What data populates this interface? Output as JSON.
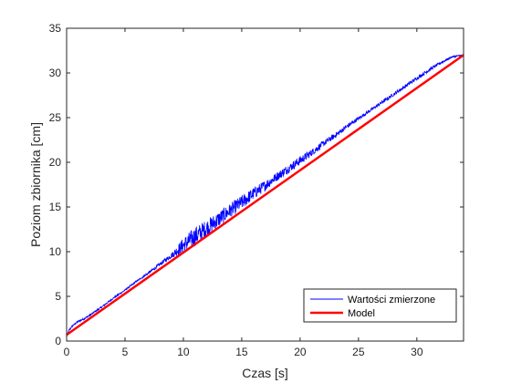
{
  "chart_data": {
    "type": "line",
    "title": "",
    "xlabel": "Czas [s]",
    "ylabel": "Poziom zbiornika [cm]",
    "xlim": [
      0,
      34
    ],
    "ylim": [
      0,
      35
    ],
    "xticks": [
      0,
      5,
      10,
      15,
      20,
      25,
      30
    ],
    "yticks": [
      0,
      5,
      10,
      15,
      20,
      25,
      30,
      35
    ],
    "grid": false,
    "legend_position": "bottom-right",
    "series": [
      {
        "name": "Wartości zmierzone",
        "color": "#0000ff",
        "style": "noisy",
        "x": [
          0,
          0.2,
          0.5,
          1,
          1.5,
          2,
          3,
          4,
          5,
          6,
          7,
          8,
          9,
          10,
          11,
          12,
          13,
          14,
          15,
          16,
          17,
          18,
          19,
          20,
          21,
          22,
          23,
          24,
          25,
          26,
          27,
          28,
          29,
          30,
          31,
          32,
          33,
          34
        ],
        "y": [
          0.5,
          1.2,
          1.7,
          2.2,
          2.5,
          2.9,
          3.8,
          4.8,
          5.7,
          6.7,
          7.6,
          8.6,
          9.6,
          10.7,
          11.7,
          12.6,
          13.6,
          14.6,
          15.5,
          16.5,
          17.4,
          18.4,
          19.3,
          20.2,
          21.1,
          22.1,
          23.0,
          24.0,
          24.9,
          25.8,
          26.7,
          27.6,
          28.5,
          29.4,
          30.3,
          31.1,
          31.8,
          32.0
        ],
        "noise": [
          0.1,
          0.1,
          0.1,
          0.1,
          0.1,
          0.1,
          0.1,
          0.1,
          0.1,
          0.1,
          0.15,
          0.2,
          0.3,
          0.9,
          1.1,
          1.0,
          0.9,
          0.8,
          0.8,
          0.7,
          0.6,
          0.5,
          0.5,
          0.5,
          0.4,
          0.35,
          0.3,
          0.25,
          0.2,
          0.2,
          0.2,
          0.2,
          0.2,
          0.2,
          0.2,
          0.15,
          0.1,
          0.1
        ]
      },
      {
        "name": "Model",
        "color": "#ff0000",
        "style": "thick",
        "x": [
          0,
          34
        ],
        "y": [
          0.7,
          32.0
        ]
      }
    ]
  }
}
